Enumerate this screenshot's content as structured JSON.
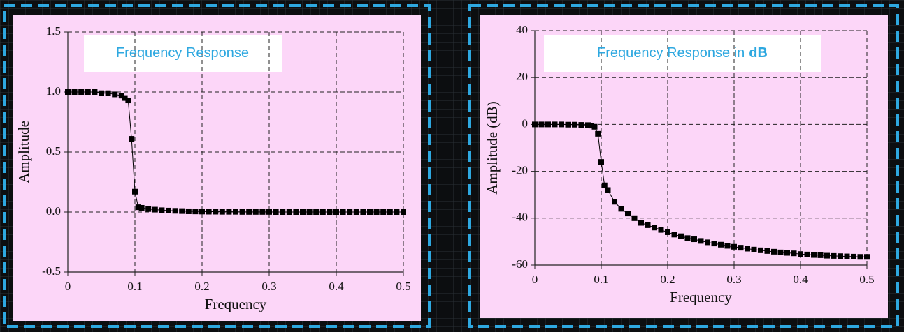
{
  "chart_data": [
    {
      "type": "line",
      "title": "Frequency Response",
      "x_label": "Frequency",
      "y_label": "Amplitude",
      "x": [
        0,
        0.01,
        0.02,
        0.03,
        0.04,
        0.05,
        0.06,
        0.07,
        0.08,
        0.085,
        0.09,
        0.095,
        0.1,
        0.105,
        0.11,
        0.12,
        0.13,
        0.14,
        0.15,
        0.16,
        0.17,
        0.18,
        0.19,
        0.2,
        0.21,
        0.22,
        0.23,
        0.24,
        0.25,
        0.26,
        0.27,
        0.28,
        0.29,
        0.3,
        0.31,
        0.32,
        0.33,
        0.34,
        0.35,
        0.36,
        0.37,
        0.38,
        0.39,
        0.4,
        0.41,
        0.42,
        0.43,
        0.44,
        0.45,
        0.46,
        0.47,
        0.48,
        0.49,
        0.5
      ],
      "series": [
        {
          "color": "#000000",
          "values": [
            1,
            1,
            1,
            1,
            1,
            0.99,
            0.99,
            0.98,
            0.97,
            0.95,
            0.93,
            0.61,
            0.17,
            0.04,
            0.035,
            0.025,
            0.02,
            0.015,
            0.012,
            0.01,
            0.008,
            0.006,
            0.005,
            0.004,
            0.003,
            0.003,
            0.002,
            0.002,
            0.002,
            0.001,
            0.001,
            0.001,
            0.001,
            0.001,
            0,
            0,
            0,
            0,
            0,
            0,
            0,
            0,
            0,
            0,
            0,
            0,
            0,
            0,
            0,
            0,
            0,
            0,
            0,
            0
          ]
        }
      ],
      "xlim": [
        0,
        0.5
      ],
      "xticks": [
        0,
        0.1,
        0.2,
        0.3,
        0.4,
        0.5
      ],
      "ylim": [
        -0.5,
        1.5
      ],
      "yticks": [
        -0.5,
        {
          "value": 0,
          "label": "0.0"
        },
        0.5,
        {
          "value": 1,
          "label": "1.0"
        },
        1.5
      ],
      "grid": true
    },
    {
      "type": "line",
      "title": "Frequency Response in",
      "title_emphasis": "dB",
      "x_label": "Frequency",
      "y_label": "Amplitude (dB)",
      "x": [
        0,
        0.01,
        0.02,
        0.03,
        0.04,
        0.05,
        0.06,
        0.07,
        0.08,
        0.085,
        0.09,
        0.095,
        0.1,
        0.105,
        0.11,
        0.12,
        0.13,
        0.14,
        0.15,
        0.16,
        0.17,
        0.18,
        0.19,
        0.2,
        0.21,
        0.22,
        0.23,
        0.24,
        0.25,
        0.26,
        0.27,
        0.28,
        0.29,
        0.3,
        0.31,
        0.32,
        0.33,
        0.34,
        0.35,
        0.36,
        0.37,
        0.38,
        0.39,
        0.4,
        0.41,
        0.42,
        0.43,
        0.44,
        0.45,
        0.46,
        0.47,
        0.48,
        0.49,
        0.5
      ],
      "series": [
        {
          "color": "#000000",
          "values": [
            0,
            0,
            0,
            0,
            0,
            -0.1,
            -0.1,
            -0.2,
            -0.3,
            -0.5,
            -1,
            -4,
            -16,
            -26,
            -28,
            -33,
            -36,
            -38,
            -40,
            -42,
            -43,
            -44,
            -45,
            -46,
            -47,
            -47.7,
            -48.5,
            -49,
            -49.7,
            -50.3,
            -50.8,
            -51.3,
            -51.8,
            -52.2,
            -52.6,
            -53,
            -53.4,
            -53.7,
            -54,
            -54.3,
            -54.6,
            -54.8,
            -55,
            -55.3,
            -55.5,
            -55.7,
            -55.8,
            -56,
            -56.1,
            -56.2,
            -56.3,
            -56.4,
            -56.5,
            -56.5
          ]
        }
      ],
      "xlim": [
        0,
        0.5
      ],
      "xticks": [
        0,
        0.1,
        0.2,
        0.3,
        0.4,
        0.5
      ],
      "ylim": [
        -60,
        40
      ],
      "yticks": [
        -60,
        -40,
        -20,
        0,
        20,
        40
      ],
      "grid": true
    }
  ]
}
